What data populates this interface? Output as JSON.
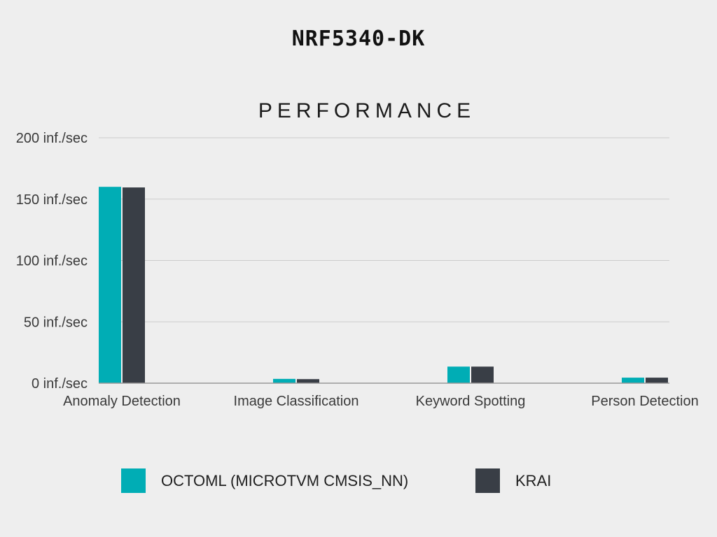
{
  "header": {
    "title": "NRF5340-DK"
  },
  "colors": {
    "octoml": "#00adb5",
    "krai": "#393e46",
    "grid": "#cccccc",
    "axis": "#999999"
  },
  "chart_data": {
    "type": "bar",
    "title": "PERFORMANCE",
    "categories": [
      "Anomaly Detection",
      "Image Classification",
      "Keyword Spotting",
      "Person Detection"
    ],
    "series": [
      {
        "name": "OCTOML (MICROTVM CMSIS_NN)",
        "values": [
          160,
          3.5,
          13.5,
          4.5
        ]
      },
      {
        "name": "KRAI",
        "values": [
          159.5,
          3.3,
          13.5,
          4.5
        ]
      }
    ],
    "ylim": [
      0,
      200
    ],
    "yticks": [
      0,
      50,
      100,
      150,
      200
    ],
    "ytick_labels": [
      "0 inf./sec",
      "50 inf./sec",
      "100 inf./sec",
      "150 inf./sec",
      "200 inf./sec"
    ],
    "grid": true,
    "legend": "bottom"
  }
}
